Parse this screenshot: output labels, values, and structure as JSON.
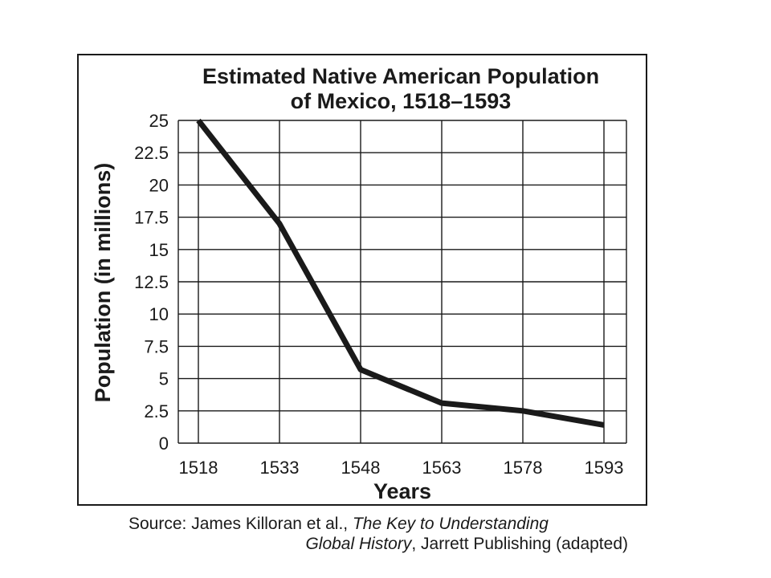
{
  "chart_data": {
    "type": "line",
    "title": "Estimated Native American Population of Mexico, 1518–1593",
    "title_lines": [
      "Estimated Native American Population",
      "of Mexico, 1518–1593"
    ],
    "xlabel": "Years",
    "ylabel": "Population (in millions)",
    "x": [
      1518,
      1533,
      1548,
      1563,
      1578,
      1593
    ],
    "x_tick_labels": [
      "1518",
      "1533",
      "1548",
      "1563",
      "1578",
      "1593"
    ],
    "y_tick_labels": [
      "0",
      "2.5",
      "5",
      "7.5",
      "10",
      "12.5",
      "15",
      "17.5",
      "20",
      "22.5",
      "25"
    ],
    "series": [
      {
        "values": [
          25,
          17,
          5.7,
          3.1,
          2.5,
          1.4
        ]
      }
    ],
    "xlim": [
      1518,
      1593
    ],
    "ylim": [
      0,
      25
    ],
    "grid": true,
    "line_color": "#1a1a1a",
    "grid_color": "#1a1a1a"
  },
  "source": {
    "prefix": "Source: James Killoran et al., ",
    "book_title_part1": "The Key to Understanding",
    "book_title_part2": "Global History",
    "suffix": ", Jarrett Publishing (adapted)"
  }
}
